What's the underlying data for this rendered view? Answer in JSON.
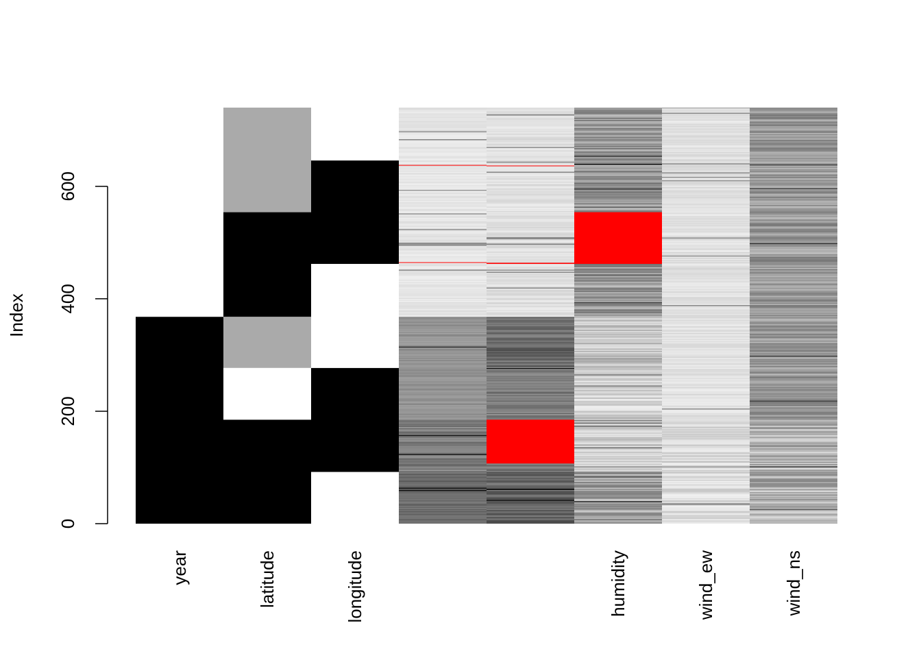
{
  "chart_data": {
    "type": "heatmap",
    "title": "",
    "xlabel": "",
    "ylabel": "Index",
    "ylim": [
      0,
      740
    ],
    "y_ticks": [
      0,
      200,
      400,
      600
    ],
    "n_rows": 740,
    "columns": [
      {
        "label": "year",
        "kind": "blocks",
        "blocks": [
          {
            "from": 0,
            "to": 368,
            "color": "#000000"
          },
          {
            "from": 368,
            "to": 740,
            "color": "#ffffff"
          }
        ]
      },
      {
        "label": "latitude",
        "kind": "blocks",
        "blocks": [
          {
            "from": 0,
            "to": 185,
            "color": "#000000"
          },
          {
            "from": 185,
            "to": 277,
            "color": "#ffffff"
          },
          {
            "from": 277,
            "to": 368,
            "color": "#aaaaaa"
          },
          {
            "from": 368,
            "to": 554,
            "color": "#000000"
          },
          {
            "from": 554,
            "to": 740,
            "color": "#aaaaaa"
          }
        ]
      },
      {
        "label": "longitude",
        "kind": "blocks",
        "blocks": [
          {
            "from": 0,
            "to": 92,
            "color": "#ffffff"
          },
          {
            "from": 92,
            "to": 277,
            "color": "#000000"
          },
          {
            "from": 277,
            "to": 462,
            "color": "#ffffff"
          },
          {
            "from": 462,
            "to": 646,
            "color": "#000000"
          },
          {
            "from": 646,
            "to": 740,
            "color": "#ffffff"
          }
        ]
      },
      {
        "label": "",
        "kind": "stripes",
        "bands": [
          {
            "from": 0,
            "to": 92,
            "mean": 0.42,
            "spread": 0.08
          },
          {
            "from": 92,
            "to": 185,
            "mean": 0.5,
            "spread": 0.12
          },
          {
            "from": 185,
            "to": 368,
            "mean": 0.58,
            "spread": 0.06
          },
          {
            "from": 368,
            "to": 740,
            "mean": 0.9,
            "spread": 0.04
          }
        ],
        "missing": [
          {
            "from": 464,
            "to": 465
          },
          {
            "from": 637,
            "to": 638
          }
        ]
      },
      {
        "label": "",
        "kind": "stripes",
        "bands": [
          {
            "from": 0,
            "to": 92,
            "mean": 0.4,
            "spread": 0.12
          },
          {
            "from": 92,
            "to": 185,
            "mean": 0.45,
            "spread": 0.1
          },
          {
            "from": 185,
            "to": 277,
            "mean": 0.5,
            "spread": 0.1
          },
          {
            "from": 277,
            "to": 368,
            "mean": 0.42,
            "spread": 0.12
          },
          {
            "from": 368,
            "to": 740,
            "mean": 0.88,
            "spread": 0.05
          }
        ],
        "missing": [
          {
            "from": 107,
            "to": 185
          },
          {
            "from": 462,
            "to": 464
          },
          {
            "from": 636,
            "to": 637
          }
        ]
      },
      {
        "label": "humidity",
        "kind": "stripes",
        "bands": [
          {
            "from": 0,
            "to": 92,
            "mean": 0.62,
            "spread": 0.18
          },
          {
            "from": 92,
            "to": 277,
            "mean": 0.82,
            "spread": 0.12
          },
          {
            "from": 277,
            "to": 368,
            "mean": 0.78,
            "spread": 0.15
          },
          {
            "from": 368,
            "to": 740,
            "mean": 0.6,
            "spread": 0.16
          }
        ],
        "missing": [
          {
            "from": 462,
            "to": 554
          }
        ]
      },
      {
        "label": "wind_ew",
        "kind": "stripes",
        "bands": [
          {
            "from": 0,
            "to": 185,
            "mean": 0.86,
            "spread": 0.1
          },
          {
            "from": 185,
            "to": 740,
            "mean": 0.88,
            "spread": 0.05
          }
        ],
        "missing": []
      },
      {
        "label": "wind_ns",
        "kind": "stripes",
        "bands": [
          {
            "from": 0,
            "to": 185,
            "mean": 0.7,
            "spread": 0.18
          },
          {
            "from": 185,
            "to": 740,
            "mean": 0.6,
            "spread": 0.14
          }
        ],
        "missing": []
      }
    ],
    "missing_color": "#ff0000"
  }
}
